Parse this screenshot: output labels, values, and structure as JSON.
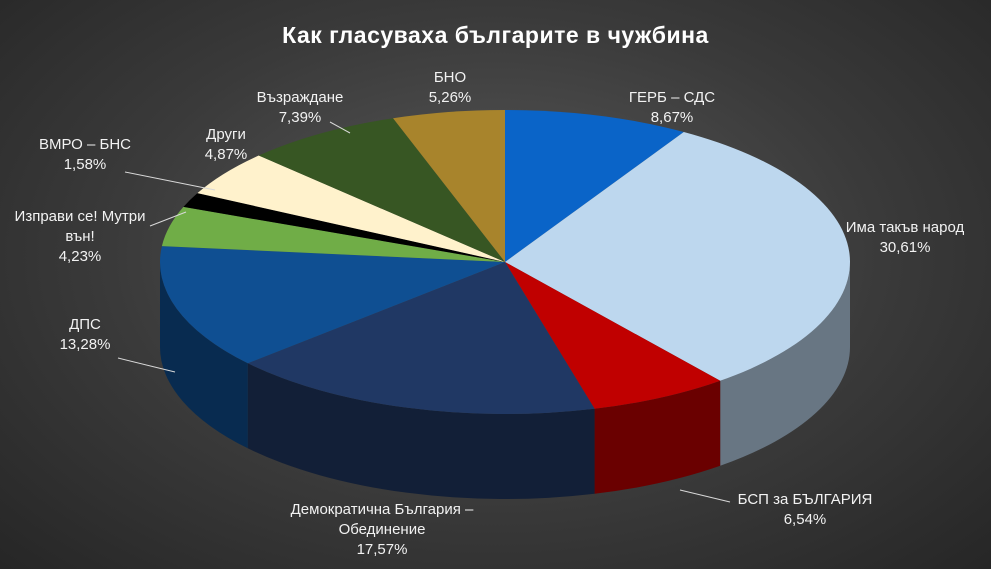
{
  "chart_data": {
    "type": "pie3d",
    "title": "Как гласуваха българите в чужбина",
    "categories": [
      "ГЕРБ – СДС",
      "Има такъв народ",
      "БСП за БЪЛГАРИЯ",
      "Демократична България – Обединение",
      "ДПС",
      "Изправи се! Мутри вън!",
      "ВМРО – БНС",
      "Други",
      "Възраждане",
      "БНО"
    ],
    "values": [
      8.67,
      30.61,
      6.54,
      17.57,
      13.28,
      4.23,
      1.58,
      4.87,
      7.39,
      5.26
    ],
    "value_labels": [
      "8,67%",
      "30,61%",
      "6,54%",
      "17,57%",
      "13,28%",
      "4,23%",
      "1,58%",
      "4,87%",
      "7,39%",
      "5,26%"
    ],
    "colors": [
      "#0a64c8",
      "#bdd7ee",
      "#c00000",
      "#203864",
      "#0f4f92",
      "#70ad47",
      "#000000",
      "#fff2cc",
      "#375623",
      "#a8842c"
    ]
  }
}
